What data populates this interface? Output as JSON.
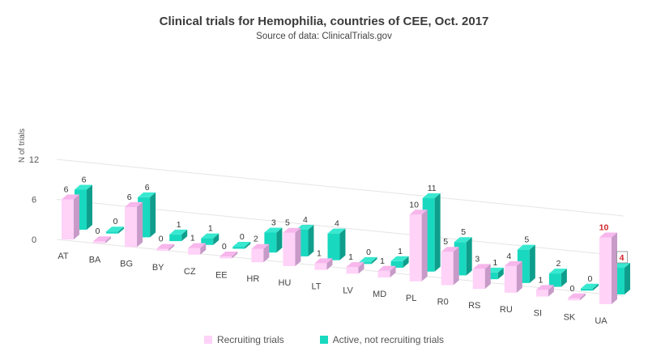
{
  "chart_data": {
    "type": "bar",
    "title": "Clinical trials for Hemophilia, countries of CEE, Oct. 2017",
    "subtitle": "Source of data: ClinicalTrials.gov",
    "xlabel": "",
    "ylabel": "N of trials",
    "ylim": [
      0,
      12
    ],
    "yticks": [
      0,
      6,
      12
    ],
    "categories": [
      "AT",
      "BA",
      "BG",
      "BY",
      "CZ",
      "EE",
      "HR",
      "HU",
      "LT",
      "LV",
      "MD",
      "PL",
      "R0",
      "RS",
      "RU",
      "SI",
      "SK",
      "UA"
    ],
    "series": [
      {
        "name": "Recruiting trials",
        "values": [
          6,
          0,
          6,
          0,
          1,
          0,
          2,
          5,
          1,
          1,
          1,
          10,
          5,
          3,
          4,
          1,
          0,
          10
        ]
      },
      {
        "name": "Active, not recruiting trials",
        "values": [
          6,
          0,
          6,
          1,
          1,
          0,
          3,
          4,
          4,
          0,
          1,
          11,
          5,
          1,
          5,
          2,
          0,
          4
        ]
      }
    ],
    "highlight_labels": [
      "UA"
    ],
    "legend_position": "bottom",
    "colors": {
      "recruiting_front": "#ffd2f8",
      "recruiting_side": "#c79ac8",
      "recruiting_top": "#f7b6ec",
      "active_front": "#18d9c0",
      "active_side": "#0f9e8c",
      "active_top": "#38e8d0",
      "highlight_label": "#d4242a",
      "grid": "#e4e4e4"
    }
  }
}
